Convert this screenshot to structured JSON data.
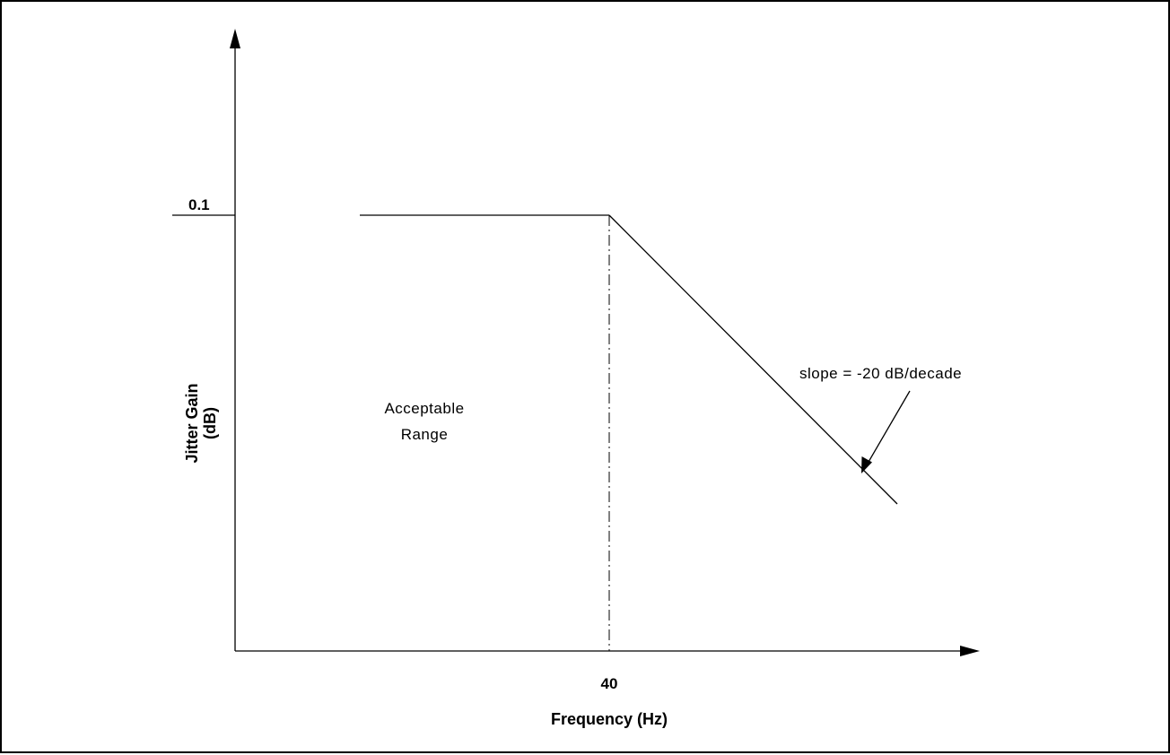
{
  "figure": {
    "xlabel": "Frequency (Hz)",
    "ylabel_line1": "Jitter Gain",
    "ylabel_line2": "(dB)",
    "x_tick": "40",
    "y_tick": "0.1",
    "region_label_line1": "Acceptable",
    "region_label_line2": "Range",
    "slope_label": "slope = -20 dB/decade"
  },
  "colors": {
    "line": "#000000",
    "background": "#ffffff"
  }
}
